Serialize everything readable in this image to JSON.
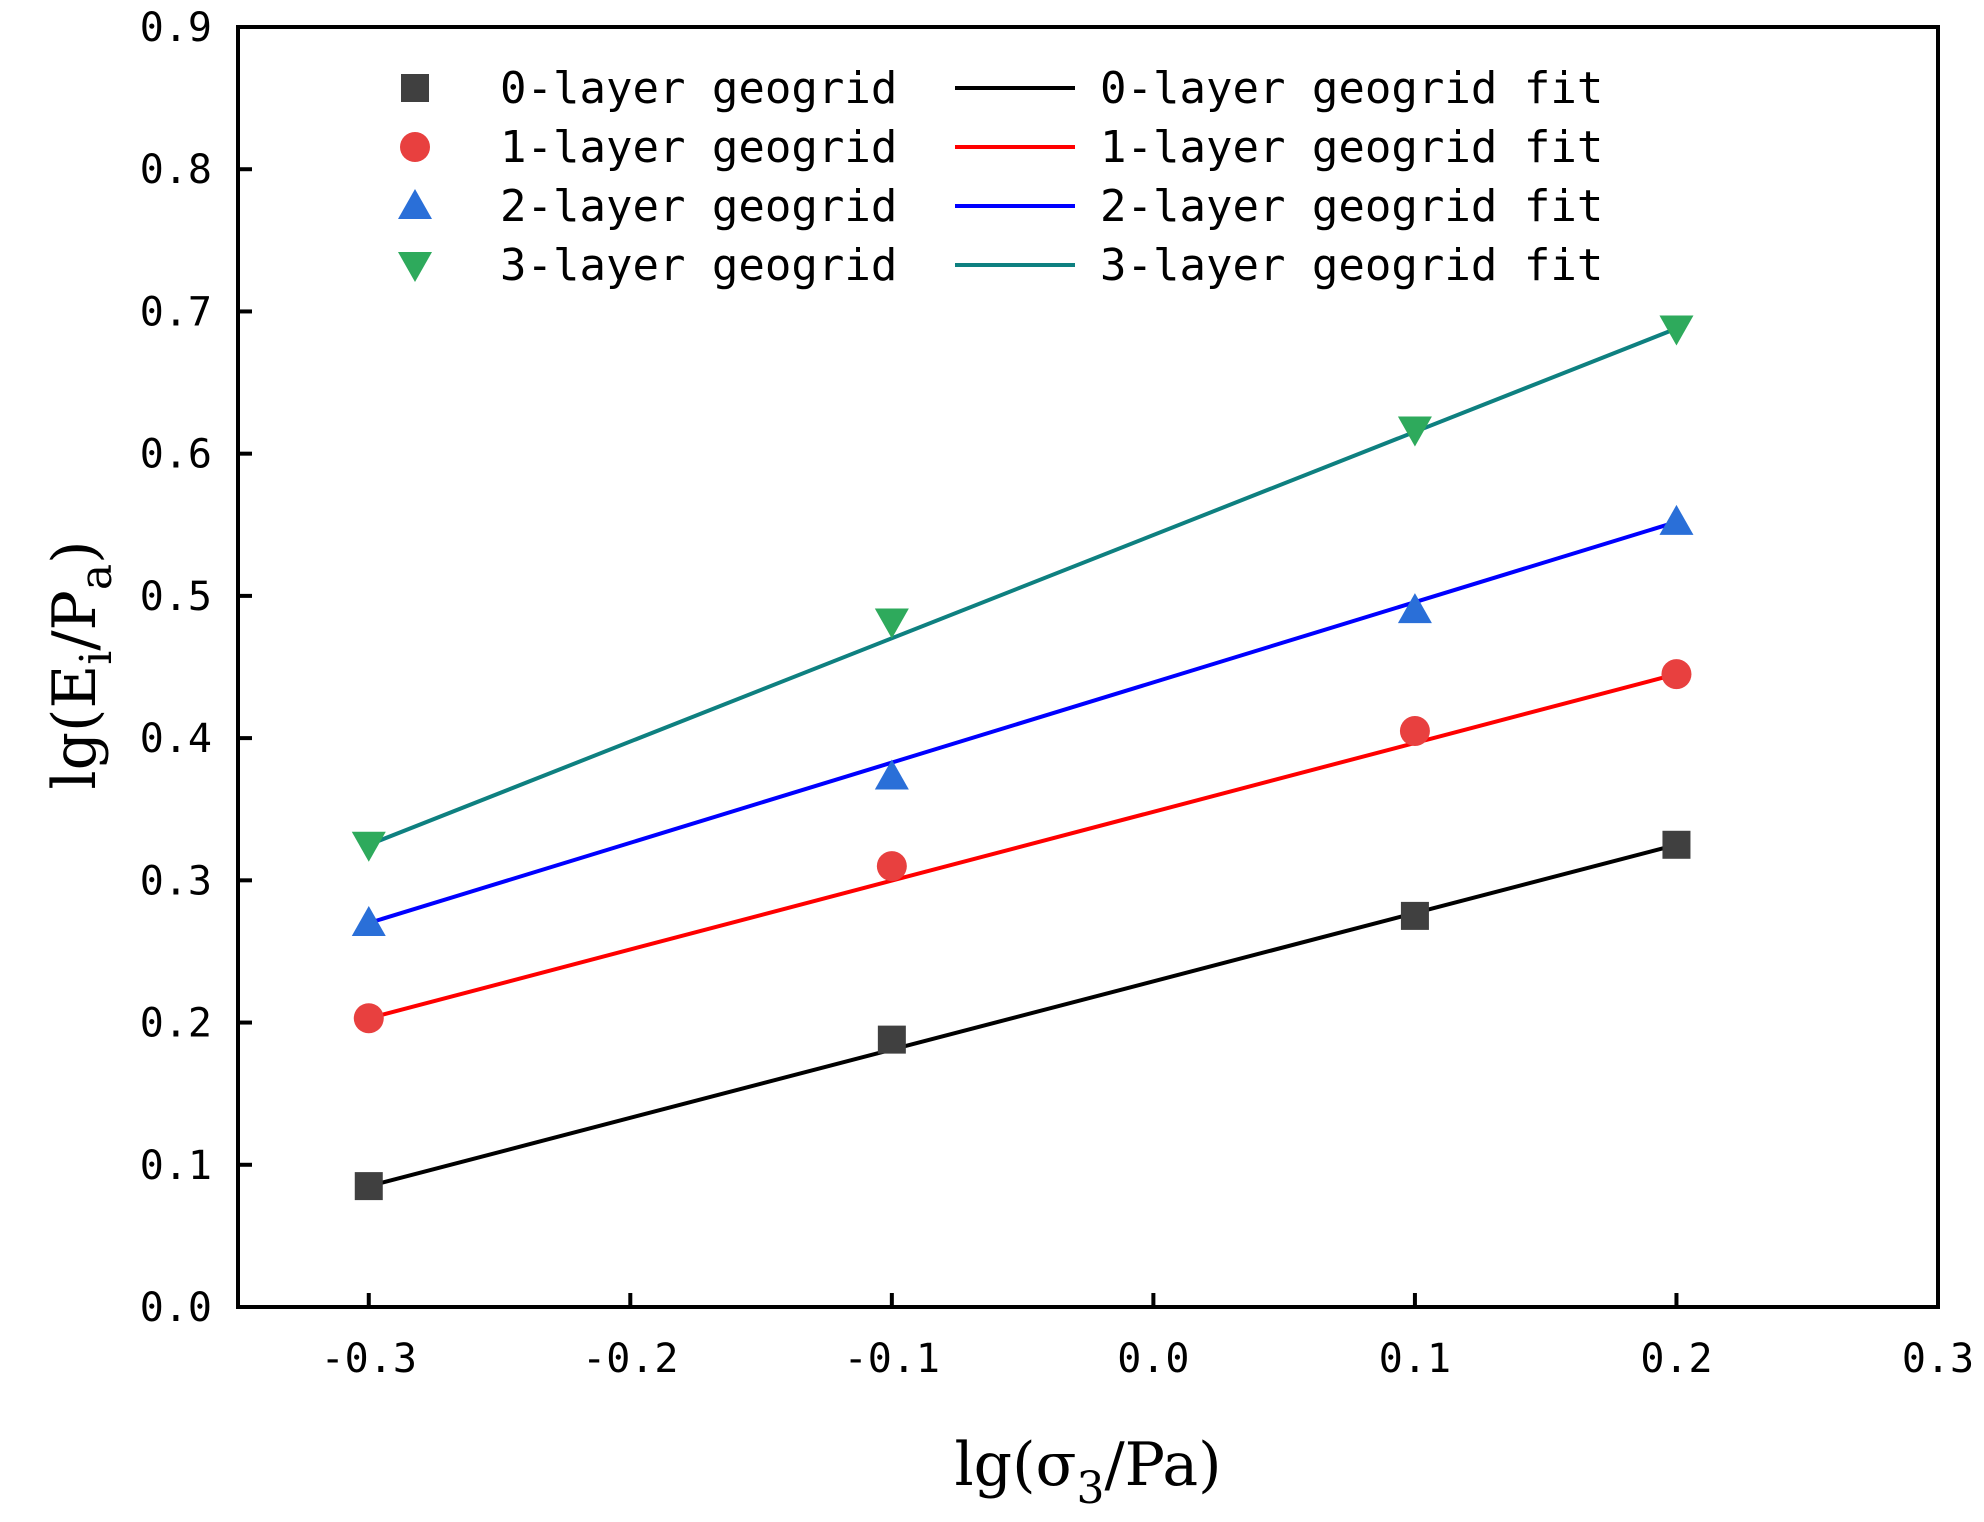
{
  "chart_data": {
    "type": "scatter",
    "title": "",
    "xlabel": {
      "prefix": "lg",
      "open": "(",
      "symbol": "σ",
      "sub": "3",
      "rest": "/Pa)"
    },
    "ylabel": {
      "prefix": "lg",
      "open": "(",
      "symbol": "E",
      "sub": "i",
      "rest": "/P",
      "sub2": "a",
      "close": ")"
    },
    "xlim": [
      -0.35,
      0.3
    ],
    "ylim": [
      0.0,
      0.9
    ],
    "xticks": [
      -0.3,
      -0.2,
      -0.1,
      0.0,
      0.1,
      0.2,
      0.3
    ],
    "xtick_labels": [
      "-0.3",
      "-0.2",
      "-0.1",
      "0.0",
      "0.1",
      "0.2",
      "0.3"
    ],
    "yticks": [
      0.0,
      0.1,
      0.2,
      0.3,
      0.4,
      0.5,
      0.6,
      0.7,
      0.8,
      0.9
    ],
    "ytick_labels": [
      "0.0",
      "0.1",
      "0.2",
      "0.3",
      "0.4",
      "0.5",
      "0.6",
      "0.7",
      "0.8",
      "0.9"
    ],
    "grid": false,
    "legend_position": "top",
    "series": [
      {
        "name": "0-layer geogrid",
        "fit_name": "0-layer geogrid fit",
        "marker": "square",
        "marker_color": "#404040",
        "line_color": "#000000",
        "x": [
          -0.3,
          -0.1,
          0.1,
          0.2
        ],
        "y": [
          0.085,
          0.188,
          0.275,
          0.325
        ],
        "fit": {
          "x": [
            -0.3,
            0.2
          ],
          "y": [
            0.085,
            0.325
          ]
        }
      },
      {
        "name": "1-layer geogrid",
        "fit_name": "1-layer geogrid fit",
        "marker": "circle",
        "marker_color": "#e8403f",
        "line_color": "#ff0000",
        "x": [
          -0.3,
          -0.1,
          0.1,
          0.2
        ],
        "y": [
          0.203,
          0.31,
          0.405,
          0.445
        ],
        "fit": {
          "x": [
            -0.3,
            0.2
          ],
          "y": [
            0.203,
            0.445
          ]
        }
      },
      {
        "name": "2-layer geogrid",
        "fit_name": "2-layer geogrid fit",
        "marker": "triangle-up",
        "marker_color": "#2a6fd8",
        "line_color": "#0000ff",
        "x": [
          -0.3,
          -0.1,
          0.1,
          0.2
        ],
        "y": [
          0.27,
          0.373,
          0.49,
          0.552
        ],
        "fit": {
          "x": [
            -0.3,
            0.2
          ],
          "y": [
            0.27,
            0.552
          ]
        }
      },
      {
        "name": "3-layer geogrid",
        "fit_name": "3-layer geogrid fit",
        "marker": "triangle-down",
        "marker_color": "#2eaa5c",
        "line_color": "#0e8080",
        "x": [
          -0.3,
          -0.1,
          0.1,
          0.2
        ],
        "y": [
          0.325,
          0.482,
          0.617,
          0.688
        ],
        "fit": {
          "x": [
            -0.3,
            0.2
          ],
          "y": [
            0.325,
            0.688
          ]
        }
      }
    ]
  }
}
